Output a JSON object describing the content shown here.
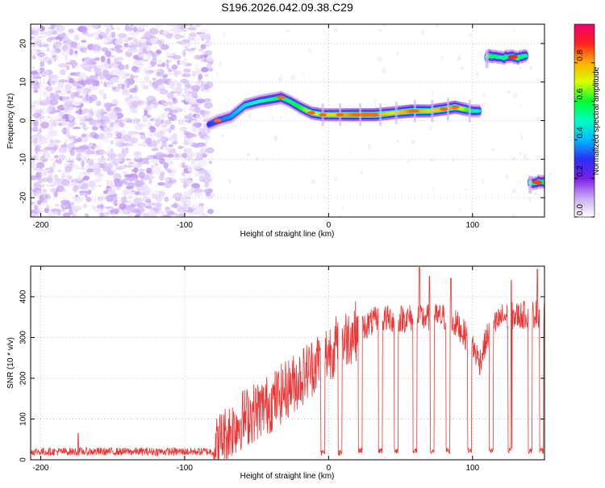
{
  "title": "S196.2026.042.09.38.C29",
  "chart_data": [
    {
      "type": "heatmap",
      "xlabel": "Height of straight line (km)",
      "ylabel": "Frequency (Hz)",
      "xlim": [
        -207,
        150
      ],
      "ylim": [
        -25,
        25
      ],
      "xticks": [
        -200,
        -100,
        0,
        100
      ],
      "yticks": [
        -20,
        -10,
        0,
        10,
        20
      ],
      "colorbar": {
        "label": "Normalized spectral amplitude",
        "range": [
          0,
          1
        ],
        "ticks": [
          0.0,
          0.2,
          0.4,
          0.6,
          0.8
        ],
        "colors": [
          "#ffffff",
          "#c8a8f4",
          "#7a1ee6",
          "#2a30f5",
          "#00b8ff",
          "#00ffc0",
          "#00ff30",
          "#d8ff00",
          "#ffb000",
          "#ff2020",
          "#f0006e"
        ]
      },
      "noise_region": {
        "x_range": [
          -207,
          -82
        ],
        "frequency_range": [
          -25,
          25
        ],
        "amplitude_range": [
          0.02,
          0.12
        ]
      },
      "signal_track": [
        {
          "x": -83,
          "f": -1.0,
          "a": 0.3
        },
        {
          "x": -77,
          "f": 0.0,
          "a": 0.35
        },
        {
          "x": -68,
          "f": 1.0,
          "a": 0.38
        },
        {
          "x": -58,
          "f": 4.0,
          "a": 0.45
        },
        {
          "x": -48,
          "f": 5.0,
          "a": 0.5
        },
        {
          "x": -40,
          "f": 5.5,
          "a": 0.52
        },
        {
          "x": -33,
          "f": 6.0,
          "a": 0.58
        },
        {
          "x": -27,
          "f": 5.0,
          "a": 0.55
        },
        {
          "x": -20,
          "f": 3.5,
          "a": 0.6
        },
        {
          "x": -12,
          "f": 2.0,
          "a": 0.7
        },
        {
          "x": -4,
          "f": 1.5,
          "a": 0.72
        },
        {
          "x": 5,
          "f": 1.5,
          "a": 0.75
        },
        {
          "x": 18,
          "f": 1.5,
          "a": 0.85
        },
        {
          "x": 32,
          "f": 1.5,
          "a": 0.85
        },
        {
          "x": 45,
          "f": 2.0,
          "a": 0.72
        },
        {
          "x": 58,
          "f": 2.5,
          "a": 0.85
        },
        {
          "x": 70,
          "f": 2.5,
          "a": 0.75
        },
        {
          "x": 80,
          "f": 3.0,
          "a": 0.78
        },
        {
          "x": 88,
          "f": 3.5,
          "a": 0.82
        },
        {
          "x": 100,
          "f": 2.5,
          "a": 0.55
        },
        {
          "x": 106,
          "f": 2.5,
          "a": 0.45
        }
      ],
      "upper_segment": {
        "x_range": [
          110,
          138
        ],
        "frequency": 16.5,
        "peak_x": 128,
        "peak_amplitude": 0.9
      },
      "lower_segment": {
        "x_range": [
          140,
          151
        ],
        "frequency": -16,
        "peak_x": 145,
        "peak_amplitude": 0.88
      }
    },
    {
      "type": "line",
      "xlabel": "Height of straight line (km)",
      "ylabel": "SNR (10 * v/v)",
      "xlim": [
        -207,
        150
      ],
      "ylim": [
        0,
        475
      ],
      "xticks": [
        -200,
        -100,
        0,
        100
      ],
      "yticks": [
        0,
        100,
        200,
        300,
        400
      ],
      "color": "#ee3333",
      "envelope": [
        {
          "x": -207,
          "snr": 20
        },
        {
          "x": -80,
          "snr": 20
        },
        {
          "x": -75,
          "snr": 50
        },
        {
          "x": -60,
          "snr": 100
        },
        {
          "x": -40,
          "snr": 140
        },
        {
          "x": -20,
          "snr": 200
        },
        {
          "x": -5,
          "snr": 250
        },
        {
          "x": 5,
          "snr": 280
        },
        {
          "x": 20,
          "snr": 320
        },
        {
          "x": 35,
          "snr": 345
        },
        {
          "x": 80,
          "snr": 350
        },
        {
          "x": 90,
          "snr": 330
        },
        {
          "x": 100,
          "snr": 280
        },
        {
          "x": 105,
          "snr": 240
        },
        {
          "x": 110,
          "snr": 300
        },
        {
          "x": 120,
          "snr": 350
        },
        {
          "x": 150,
          "snr": 360
        }
      ],
      "dropouts": [
        {
          "x": -4,
          "snr": 10
        },
        {
          "x": 8,
          "snr": 10
        },
        {
          "x": 22,
          "snr": 15
        },
        {
          "x": 36,
          "snr": 15
        },
        {
          "x": 47,
          "snr": 15
        },
        {
          "x": 60,
          "snr": 15
        },
        {
          "x": 72,
          "snr": 15
        },
        {
          "x": 83,
          "snr": 15
        },
        {
          "x": 98,
          "snr": 15
        },
        {
          "x": 113,
          "snr": 15
        },
        {
          "x": 126,
          "snr": 15
        },
        {
          "x": 140,
          "snr": 15
        },
        {
          "x": 148,
          "snr": 15
        }
      ],
      "spikes": [
        {
          "x": -174,
          "snr": 65
        },
        {
          "x": 63,
          "snr": 472
        },
        {
          "x": 70,
          "snr": 450
        },
        {
          "x": 85,
          "snr": 445
        },
        {
          "x": 127,
          "snr": 440
        },
        {
          "x": 145,
          "snr": 468
        }
      ]
    }
  ]
}
